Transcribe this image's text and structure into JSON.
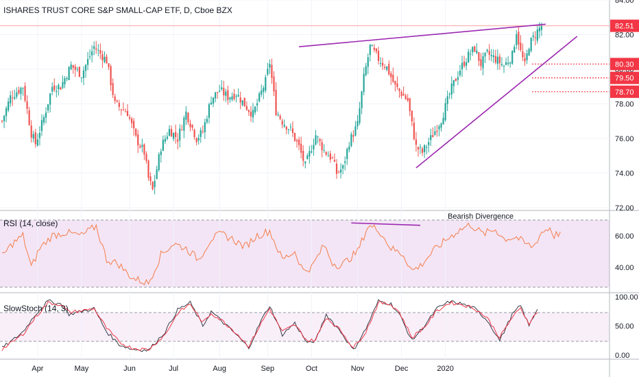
{
  "chart_data": [
    {
      "type": "candlestick",
      "title": "ISHARES TRUST CORE S&P SMALL-CAP ETF, D, Cboe BZX",
      "ylim": [
        72,
        84
      ],
      "yticks": [
        "72.00",
        "74.00",
        "76.00",
        "78.00",
        "80.00",
        "82.00",
        "84.00"
      ],
      "last_price": {
        "value": 82.51,
        "label": "82.51",
        "color": "#f23645"
      },
      "price_levels": [
        {
          "value": 80.3,
          "label": "80.30"
        },
        {
          "value": 79.5,
          "label": "79.50"
        },
        {
          "value": 78.7,
          "label": "78.70"
        }
      ],
      "wedge": {
        "color": "#9c27b0",
        "upper": [
          [
            142,
            81.3
          ],
          [
            260,
            82.6
          ]
        ],
        "lower": [
          [
            198,
            74.3
          ],
          [
            275,
            81.9
          ]
        ]
      },
      "close_anchors": [
        [
          0,
          77.0
        ],
        [
          4,
          78.4
        ],
        [
          10,
          79.0
        ],
        [
          14,
          76.3
        ],
        [
          16,
          75.7
        ],
        [
          20,
          77.2
        ],
        [
          24,
          79.0
        ],
        [
          28,
          79.0
        ],
        [
          33,
          80.2
        ],
        [
          38,
          79.7
        ],
        [
          44,
          81.3
        ],
        [
          50,
          80.5
        ],
        [
          54,
          78.0
        ],
        [
          60,
          77.5
        ],
        [
          64,
          76.0
        ],
        [
          68,
          75.2
        ],
        [
          70,
          73.7
        ],
        [
          72,
          73.0
        ],
        [
          76,
          75.5
        ],
        [
          80,
          76.5
        ],
        [
          84,
          76.0
        ],
        [
          88,
          77.5
        ],
        [
          93,
          76.0
        ],
        [
          96,
          76.4
        ],
        [
          100,
          78.3
        ],
        [
          104,
          78.8
        ],
        [
          108,
          78.4
        ],
        [
          112,
          78.6
        ],
        [
          117,
          77.8
        ],
        [
          120,
          77.4
        ],
        [
          126,
          79.3
        ],
        [
          128,
          80.4
        ],
        [
          131,
          77.6
        ],
        [
          134,
          77.0
        ],
        [
          138,
          76.5
        ],
        [
          142,
          75.5
        ],
        [
          145,
          74.4
        ],
        [
          150,
          76.2
        ],
        [
          154,
          75.3
        ],
        [
          158,
          74.8
        ],
        [
          160,
          74.0
        ],
        [
          163,
          74.3
        ],
        [
          166,
          75.8
        ],
        [
          170,
          76.8
        ],
        [
          173,
          79.5
        ],
        [
          176,
          81.3
        ],
        [
          180,
          80.6
        ],
        [
          184,
          80.1
        ],
        [
          188,
          79.0
        ],
        [
          194,
          78.2
        ],
        [
          196,
          76.8
        ],
        [
          198,
          75.5
        ],
        [
          201,
          75.2
        ],
        [
          205,
          76.0
        ],
        [
          210,
          77.1
        ],
        [
          215,
          78.9
        ],
        [
          219,
          80.0
        ],
        [
          223,
          80.8
        ],
        [
          226,
          81.2
        ],
        [
          229,
          80.3
        ],
        [
          232,
          80.9
        ],
        [
          236,
          80.6
        ],
        [
          240,
          80.2
        ],
        [
          244,
          80.8
        ],
        [
          246,
          82.2
        ],
        [
          248,
          81.0
        ],
        [
          250,
          80.2
        ],
        [
          252,
          81.4
        ],
        [
          254,
          81.8
        ],
        [
          256,
          82.2
        ],
        [
          258,
          82.5
        ]
      ],
      "x_labels": [
        {
          "label": "Apr",
          "bar": 17
        },
        {
          "label": "May",
          "bar": 38
        },
        {
          "label": "Jun",
          "bar": 61
        },
        {
          "label": "Jul",
          "bar": 82
        },
        {
          "label": "Aug",
          "bar": 104
        },
        {
          "label": "Sep",
          "bar": 127
        },
        {
          "label": "Oct",
          "bar": 148
        },
        {
          "label": "Nov",
          "bar": 170
        },
        {
          "label": "Dec",
          "bar": 191
        },
        {
          "label": "2020",
          "bar": 212
        }
      ]
    },
    {
      "type": "line",
      "title": "RSI (14, close)",
      "ylim": [
        25,
        75
      ],
      "yticks": [
        "40.00",
        "60.00"
      ],
      "band": [
        30,
        70
      ],
      "annotation": "Bearish Divergence",
      "divergence": [
        [
          167,
          68
        ],
        [
          200,
          66.5
        ]
      ],
      "anchors": [
        [
          0,
          47
        ],
        [
          5,
          55
        ],
        [
          10,
          60
        ],
        [
          14,
          40
        ],
        [
          18,
          52
        ],
        [
          24,
          60
        ],
        [
          30,
          62
        ],
        [
          38,
          60
        ],
        [
          45,
          66
        ],
        [
          50,
          45
        ],
        [
          56,
          42
        ],
        [
          60,
          36
        ],
        [
          63,
          33
        ],
        [
          70,
          30
        ],
        [
          76,
          48
        ],
        [
          82,
          55
        ],
        [
          88,
          52
        ],
        [
          94,
          45
        ],
        [
          100,
          58
        ],
        [
          105,
          61
        ],
        [
          110,
          58
        ],
        [
          116,
          53
        ],
        [
          122,
          60
        ],
        [
          128,
          63
        ],
        [
          134,
          45
        ],
        [
          140,
          50
        ],
        [
          144,
          38
        ],
        [
          148,
          40
        ],
        [
          154,
          54
        ],
        [
          158,
          43
        ],
        [
          162,
          41
        ],
        [
          170,
          50
        ],
        [
          175,
          66
        ],
        [
          180,
          64
        ],
        [
          186,
          52
        ],
        [
          192,
          48
        ],
        [
          196,
          38
        ],
        [
          200,
          41
        ],
        [
          206,
          50
        ],
        [
          212,
          57
        ],
        [
          218,
          63
        ],
        [
          224,
          67
        ],
        [
          230,
          61
        ],
        [
          236,
          64
        ],
        [
          240,
          58
        ],
        [
          246,
          59
        ],
        [
          250,
          55
        ],
        [
          254,
          53
        ],
        [
          258,
          62
        ],
        [
          262,
          65
        ],
        [
          264,
          60
        ],
        [
          267,
          62
        ]
      ]
    },
    {
      "type": "line",
      "title": "SlowStoch (14, 3)",
      "ylim": [
        -5,
        105
      ],
      "yticks": [
        "0.00",
        "50.00",
        "100.00"
      ],
      "band": [
        20,
        80
      ],
      "series": [
        {
          "color": "#363a45",
          "anchors": [
            [
              0,
              12
            ],
            [
              5,
              25
            ],
            [
              10,
              40
            ],
            [
              16,
              70
            ],
            [
              22,
              93
            ],
            [
              28,
              88
            ],
            [
              32,
              70
            ],
            [
              38,
              75
            ],
            [
              44,
              80
            ],
            [
              50,
              40
            ],
            [
              56,
              18
            ],
            [
              62,
              10
            ],
            [
              70,
              8
            ],
            [
              78,
              40
            ],
            [
              84,
              78
            ],
            [
              90,
              90
            ],
            [
              96,
              50
            ],
            [
              100,
              75
            ],
            [
              106,
              55
            ],
            [
              112,
              35
            ],
            [
              118,
              12
            ],
            [
              124,
              60
            ],
            [
              128,
              85
            ],
            [
              134,
              35
            ],
            [
              140,
              55
            ],
            [
              146,
              20
            ],
            [
              150,
              25
            ],
            [
              155,
              70
            ],
            [
              162,
              40
            ],
            [
              168,
              8
            ],
            [
              174,
              45
            ],
            [
              180,
              93
            ],
            [
              186,
              88
            ],
            [
              190,
              70
            ],
            [
              196,
              25
            ],
            [
              202,
              50
            ],
            [
              208,
              80
            ],
            [
              214,
              92
            ],
            [
              220,
              88
            ],
            [
              226,
              80
            ],
            [
              232,
              60
            ],
            [
              238,
              25
            ],
            [
              244,
              70
            ],
            [
              248,
              85
            ],
            [
              252,
              50
            ],
            [
              256,
              80
            ]
          ]
        },
        {
          "color": "#f23645",
          "anchors": [
            [
              0,
              10
            ],
            [
              5,
              22
            ],
            [
              10,
              36
            ],
            [
              16,
              65
            ],
            [
              22,
              90
            ],
            [
              28,
              87
            ],
            [
              32,
              74
            ],
            [
              38,
              76
            ],
            [
              44,
              80
            ],
            [
              50,
              46
            ],
            [
              56,
              22
            ],
            [
              62,
              12
            ],
            [
              70,
              9
            ],
            [
              78,
              35
            ],
            [
              84,
              72
            ],
            [
              90,
              88
            ],
            [
              96,
              55
            ],
            [
              100,
              72
            ],
            [
              106,
              57
            ],
            [
              112,
              38
            ],
            [
              118,
              15
            ],
            [
              124,
              55
            ],
            [
              128,
              80
            ],
            [
              134,
              40
            ],
            [
              140,
              52
            ],
            [
              146,
              24
            ],
            [
              150,
              26
            ],
            [
              155,
              65
            ],
            [
              162,
              42
            ],
            [
              168,
              12
            ],
            [
              174,
              40
            ],
            [
              180,
              90
            ],
            [
              186,
              87
            ],
            [
              190,
              74
            ],
            [
              196,
              30
            ],
            [
              202,
              48
            ],
            [
              208,
              76
            ],
            [
              214,
              90
            ],
            [
              220,
              87
            ],
            [
              226,
              80
            ],
            [
              232,
              64
            ],
            [
              238,
              30
            ],
            [
              244,
              65
            ],
            [
              248,
              80
            ],
            [
              252,
              55
            ],
            [
              256,
              75
            ]
          ]
        }
      ]
    }
  ]
}
